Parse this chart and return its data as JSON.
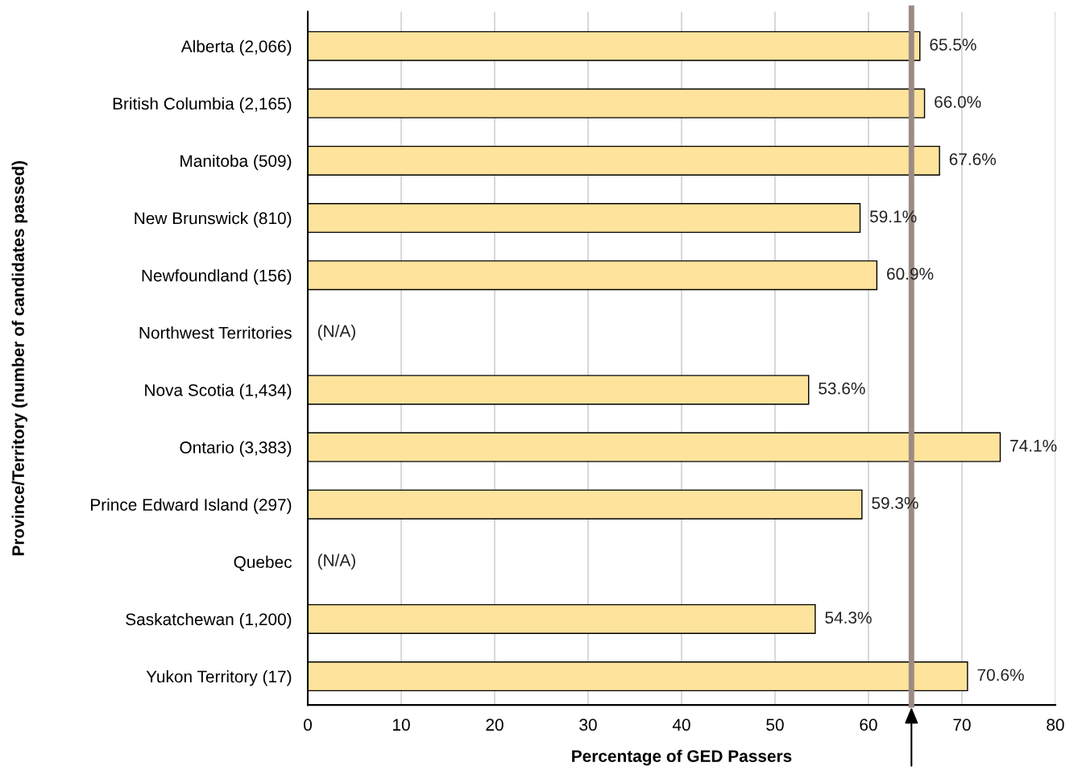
{
  "chart_data": {
    "type": "bar",
    "orientation": "horizontal",
    "xlabel": "Percentage of GED Passers",
    "ylabel": "Province/Territory (number of candidates passed)",
    "categories": [
      "Alberta (2,066)",
      "British Columbia (2,165)",
      "Manitoba (509)",
      "New Brunswick (810)",
      "Newfoundland (156)",
      "Northwest Territories",
      "Nova Scotia (1,434)",
      "Ontario (3,383)",
      "Prince Edward Island (297)",
      "Quebec",
      "Saskatchewan (1,200)",
      "Yukon Territory (17)"
    ],
    "values": [
      65.5,
      66.0,
      67.6,
      59.1,
      60.9,
      null,
      53.6,
      74.1,
      59.3,
      null,
      54.3,
      70.6
    ],
    "value_labels": [
      "65.5%",
      "66.0%",
      "67.6%",
      "59.1%",
      "60.9%",
      "(N/A)",
      "53.6%",
      "74.1%",
      "59.3%",
      "(N/A)",
      "54.3%",
      "70.6%"
    ],
    "color": "#fee39c",
    "xlim": [
      0,
      80
    ],
    "xticks": [
      0,
      10,
      20,
      30,
      40,
      50,
      60,
      70,
      80
    ],
    "grid": "x",
    "ref_lines": [
      {
        "axis": "x",
        "value": 64.6,
        "color": "#9c8b84"
      }
    ]
  }
}
